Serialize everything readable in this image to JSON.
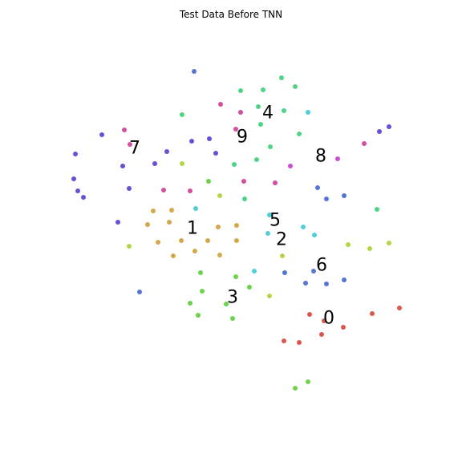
{
  "chart_data": {
    "type": "scatter",
    "title": "Test Data Before TNN",
    "xlabel": "",
    "ylabel": "",
    "xlim": [
      0,
      576
    ],
    "ylim": [
      576,
      0
    ],
    "axes_visible": false,
    "grid": false,
    "legend": "none",
    "series": [
      {
        "class": "0",
        "color": "#d9584a",
        "label_pos": [
          410,
          397
        ],
        "points": [
          [
            386,
            392
          ],
          [
            404,
            400
          ],
          [
            428,
            408
          ],
          [
            401,
            417
          ],
          [
            354,
            425
          ],
          [
            373,
            427
          ],
          [
            464,
            391
          ],
          [
            498,
            384
          ]
        ]
      },
      {
        "class": "1",
        "color": "#d4a84b",
        "label_pos": [
          240,
          285
        ],
        "points": [
          [
            191,
            263
          ],
          [
            214,
            262
          ],
          [
            184,
            280
          ],
          [
            211,
            277
          ],
          [
            226,
            300
          ],
          [
            259,
            300
          ],
          [
            272,
            283
          ],
          [
            295,
            281
          ],
          [
            197,
            302
          ],
          [
            243,
            313
          ],
          [
            216,
            319
          ],
          [
            274,
            318
          ],
          [
            295,
            300
          ]
        ]
      },
      {
        "class": "2",
        "color": "#b3d743",
        "label_pos": [
          351,
          299
        ],
        "points": [
          [
            227,
            204
          ],
          [
            274,
            244
          ],
          [
            161,
            307
          ],
          [
            352,
            319
          ],
          [
            434,
            305
          ],
          [
            461,
            310
          ],
          [
            485,
            303
          ],
          [
            336,
            369
          ]
        ]
      },
      {
        "class": "3",
        "color": "#6fd24d",
        "label_pos": [
          290,
          371
        ],
        "points": [
          [
            260,
            226
          ],
          [
            250,
            340
          ],
          [
            252,
            363
          ],
          [
            237,
            378
          ],
          [
            294,
            345
          ],
          [
            311,
            358
          ],
          [
            282,
            379
          ],
          [
            247,
            393
          ],
          [
            290,
            397
          ],
          [
            384,
            476
          ],
          [
            368,
            484
          ]
        ]
      },
      {
        "class": "4",
        "color": "#4fd486",
        "label_pos": [
          334,
          141
        ],
        "points": [
          [
            300,
            113
          ],
          [
            328,
            112
          ],
          [
            351,
            97
          ],
          [
            368,
            108
          ],
          [
            322,
            133
          ],
          [
            354,
            138
          ],
          [
            325,
            155
          ],
          [
            227,
            143
          ],
          [
            373,
            167
          ],
          [
            337,
            183
          ],
          [
            320,
            199
          ],
          [
            292,
            205
          ],
          [
            305,
            248
          ],
          [
            470,
            261
          ]
        ]
      },
      {
        "class": "5",
        "color": "#4fcfd9",
        "label_pos": [
          343,
          275
        ],
        "points": [
          [
            384,
            140
          ],
          [
            244,
            260
          ],
          [
            336,
            268
          ],
          [
            334,
            291
          ],
          [
            378,
            283
          ],
          [
            392,
            293
          ],
          [
            317,
            338
          ]
        ]
      },
      {
        "class": "6",
        "color": "#5577d3",
        "label_pos": [
          401,
          331
        ],
        "points": [
          [
            242,
            89
          ],
          [
            396,
            234
          ],
          [
            407,
            248
          ],
          [
            429,
            244
          ],
          [
            355,
            340
          ],
          [
            391,
            338
          ],
          [
            381,
            353
          ],
          [
            407,
            354
          ],
          [
            429,
            349
          ],
          [
            174,
            364
          ]
        ]
      },
      {
        "class": "7",
        "color": "#6a4fd6",
        "label_pos": [
          168,
          185
        ],
        "points": [
          [
            127,
            168
          ],
          [
            94,
            192
          ],
          [
            153,
            207
          ],
          [
            193,
            204
          ],
          [
            208,
            189
          ],
          [
            239,
            176
          ],
          [
            261,
            173
          ],
          [
            269,
            191
          ],
          [
            92,
            223
          ],
          [
            97,
            238
          ],
          [
            104,
            246
          ],
          [
            161,
            235
          ],
          [
            147,
            277
          ],
          [
            473,
            164
          ],
          [
            485,
            158
          ]
        ]
      },
      {
        "class": "8",
        "color": "#c94fd0",
        "label_pos": [
          400,
          195
        ],
        "points": [
          [
            362,
            207
          ],
          [
            421,
            198
          ]
        ]
      },
      {
        "class": "9",
        "color": "#d24fa0",
        "label_pos": [
          302,
          171
        ],
        "points": [
          [
            275,
            130
          ],
          [
            300,
            140
          ],
          [
            155,
            162
          ],
          [
            162,
            180
          ],
          [
            294,
            161
          ],
          [
            204,
            237
          ],
          [
            237,
            238
          ],
          [
            304,
            226
          ],
          [
            343,
            228
          ],
          [
            454,
            179
          ]
        ]
      }
    ]
  }
}
